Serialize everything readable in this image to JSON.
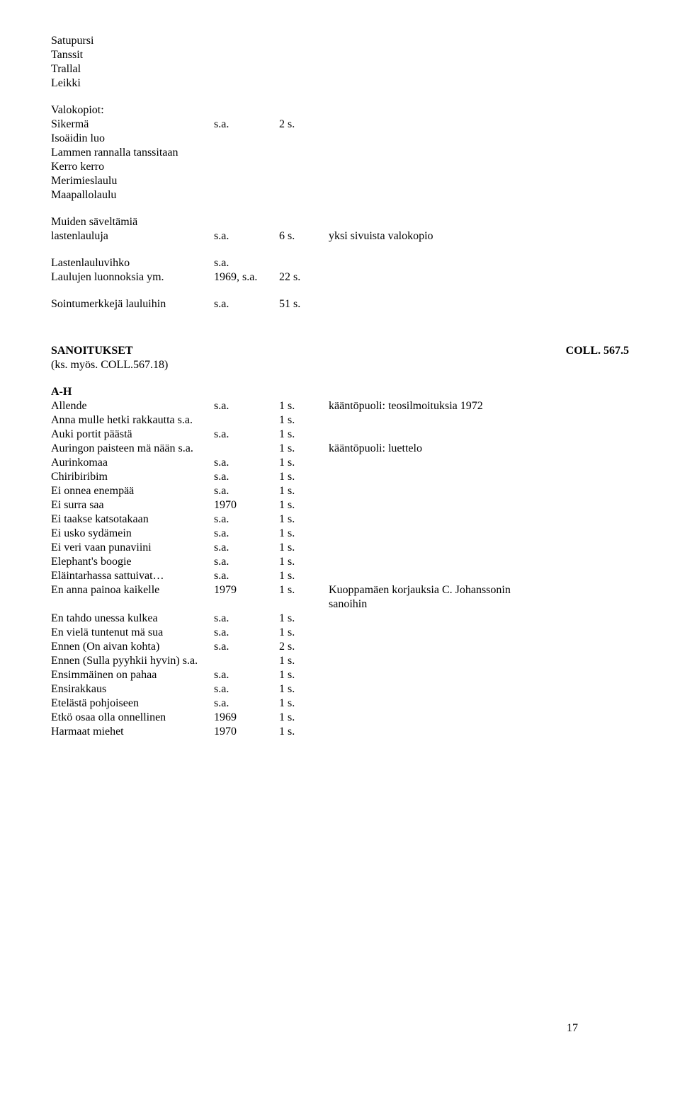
{
  "top_lines": [
    "Satupursi",
    "Tanssit",
    "Trallal",
    "Leikki"
  ],
  "valokopiot_heading": "Valokopiot:",
  "valokopiot_rows": [
    {
      "title": "Sikermä",
      "date": "s.a.",
      "pages": "2 s."
    },
    {
      "title": "Isoäidin luo"
    },
    {
      "title": "Lammen rannalla tanssitaan"
    },
    {
      "title": "Kerro kerro"
    },
    {
      "title": "Merimieslaulu"
    },
    {
      "title": "Maapallolaulu"
    }
  ],
  "muiden_title": "Muiden säveltämiä",
  "muiden_rows": [
    {
      "title": "lastenlauluja",
      "date": "s.a.",
      "pages": "6 s.",
      "note": "yksi sivuista valokopio"
    }
  ],
  "extra_rows": [
    {
      "title": "Lastenlauluvihko",
      "date": "s.a."
    },
    {
      "title": "Laulujen luonnoksia  ym.",
      "date": "1969, s.a.",
      "pages": "22 s."
    }
  ],
  "sointu_row": {
    "title": "Sointumerkkejä lauluihin",
    "date": "s.a.",
    "pages": "51 s."
  },
  "sanoitukset_heading": "SANOITUKSET",
  "sanoitukset_coll": "COLL. 567.5",
  "sanoitukset_note": "(ks. myös. COLL.567.18)",
  "ah_heading": "A-H",
  "ah_rows": [
    {
      "title": "Allende",
      "date": "s.a.",
      "pages": "1 s.",
      "note": "kääntöpuoli: teosilmoituksia 1972"
    },
    {
      "title": "Anna mulle hetki rakkautta s.a.",
      "date": "",
      "pages": "1 s."
    },
    {
      "title": "Auki portit päästä",
      "date": "s.a.",
      "pages": "1 s."
    },
    {
      "title": "Auringon paisteen mä nään s.a.",
      "date": "",
      "pages": "1 s.",
      "note": "kääntöpuoli: luettelo"
    },
    {
      "title": "Aurinkomaa",
      "date": "s.a.",
      "pages": "1 s."
    },
    {
      "title": "Chiribiribim",
      "date": "s.a.",
      "pages": "1 s."
    },
    {
      "title": "Ei onnea enempää",
      "date": "s.a.",
      "pages": "1 s."
    },
    {
      "title": "Ei surra saa",
      "date": "1970",
      "pages": "1 s."
    },
    {
      "title": "Ei taakse katsotakaan",
      "date": "s.a.",
      "pages": "1 s."
    },
    {
      "title": "Ei usko sydämein",
      "date": "s.a.",
      "pages": "1 s."
    },
    {
      "title": "Ei veri vaan punaviini",
      "date": "s.a.",
      "pages": "1 s."
    },
    {
      "title": "Elephant's boogie",
      "date": "s.a.",
      "pages": "1 s."
    },
    {
      "title": "Eläintarhassa sattuivat…",
      "date": "s.a.",
      "pages": "1 s."
    },
    {
      "title": "En anna painoa kaikelle",
      "date": "1979",
      "pages": "1 s.",
      "note": "Kuoppamäen korjauksia C. Johanssonin"
    },
    {
      "title": "",
      "date": "",
      "pages": "",
      "note": "sanoihin"
    },
    {
      "title": "En tahdo unessa kulkea",
      "date": "s.a.",
      "pages": "1 s."
    },
    {
      "title": "En vielä tuntenut mä sua",
      "date": "s.a.",
      "pages": "1 s."
    },
    {
      "title": "Ennen (On aivan kohta)",
      "date": "s.a.",
      "pages": "2 s."
    },
    {
      "title": "Ennen (Sulla pyyhkii hyvin) s.a.",
      "date": "",
      "pages": "1 s."
    },
    {
      "title": "Ensimmäinen on pahaa",
      "date": "s.a.",
      "pages": "1 s."
    },
    {
      "title": "Ensirakkaus",
      "date": "s.a.",
      "pages": "1 s."
    },
    {
      "title": "Etelästä pohjoiseen",
      "date": "s.a.",
      "pages": "1 s."
    },
    {
      "title": "Etkö osaa olla onnellinen",
      "date": "1969",
      "pages": "1 s."
    },
    {
      "title": "Harmaat miehet",
      "date": "1970",
      "pages": "1 s."
    }
  ],
  "page_number": "17"
}
